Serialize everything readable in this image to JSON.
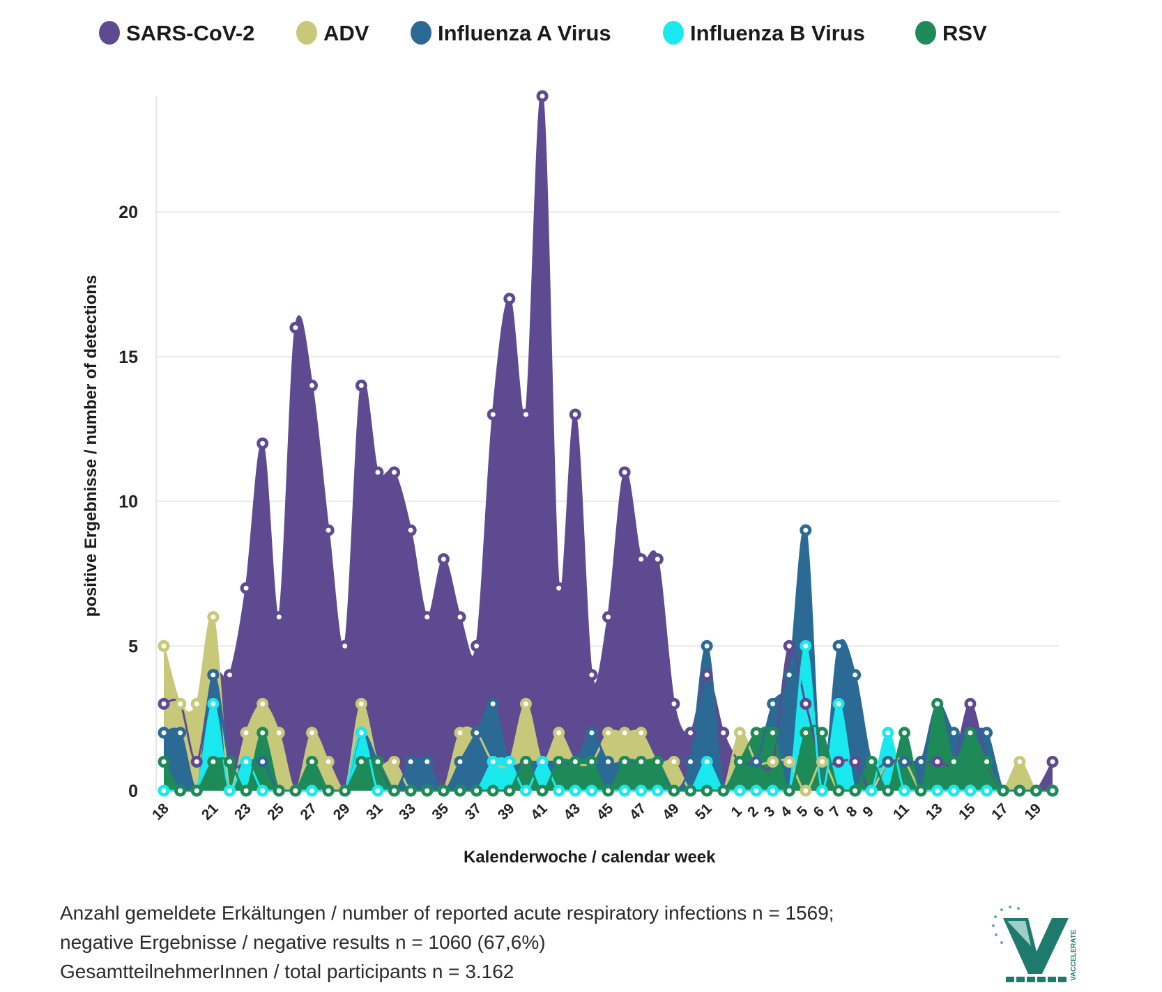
{
  "footer": {
    "line1": "Anzahl gemeldete Erkältungen / number of reported acute respiratory infections n = 1569;",
    "line2": "negative Ergebnisse / negative results n = 1060 (67,6%)",
    "line3": "GesamtteilnehmerInnen / total participants n = 3.162"
  },
  "logo": {
    "text": "VACCELERATE"
  },
  "chart_data": {
    "type": "area",
    "title": "",
    "xlabel": "Kalenderwoche / calendar week",
    "ylabel": "positive Ergebnisse / number of detections",
    "ylim": [
      0,
      24
    ],
    "yticks": [
      0,
      5,
      10,
      15,
      20
    ],
    "grid": true,
    "legend_position": "top",
    "categories": [
      "18",
      "19",
      "20",
      "21",
      "22",
      "23",
      "24",
      "25",
      "26",
      "27",
      "28",
      "29",
      "30",
      "31",
      "32",
      "33",
      "34",
      "35",
      "36",
      "37",
      "38",
      "39",
      "40",
      "41",
      "42",
      "43",
      "44",
      "45",
      "46",
      "47",
      "48",
      "49",
      "50",
      "51",
      "52",
      "1",
      "2",
      "3",
      "4",
      "5",
      "6",
      "7",
      "8",
      "9",
      "10",
      "11",
      "12",
      "13",
      "14",
      "15",
      "16",
      "17",
      "18",
      "19",
      "20"
    ],
    "tick_labels": [
      "18",
      "",
      "",
      "21",
      "",
      "23",
      "",
      "25",
      "",
      "27",
      "",
      "29",
      "",
      "31",
      "",
      "33",
      "",
      "35",
      "",
      "37",
      "",
      "39",
      "",
      "41",
      "",
      "43",
      "",
      "45",
      "",
      "47",
      "",
      "49",
      "",
      "51",
      "",
      "1",
      "2",
      "3",
      "4",
      "5",
      "6",
      "7",
      "8",
      "9",
      "",
      "11",
      "",
      "13",
      "",
      "15",
      "",
      "17",
      "",
      "19",
      ""
    ],
    "series": [
      {
        "name": "SARS-CoV-2",
        "color": "#5e4a91",
        "values": [
          3,
          3,
          1,
          4,
          4,
          7,
          12,
          6,
          16,
          14,
          9,
          5,
          14,
          11,
          11,
          9,
          6,
          8,
          6,
          5,
          13,
          17,
          13,
          24,
          7,
          13,
          4,
          6,
          11,
          8,
          8,
          3,
          2,
          4,
          2,
          1,
          1,
          1,
          5,
          3,
          1,
          1,
          1,
          0,
          1,
          1,
          1,
          1,
          1,
          3,
          1,
          0,
          0,
          0,
          1
        ]
      },
      {
        "name": "ADV",
        "color": "#c8c87a",
        "values": [
          5,
          3,
          3,
          6,
          0,
          2,
          3,
          2,
          0,
          2,
          1,
          0,
          3,
          1,
          1,
          0,
          0,
          0,
          2,
          2,
          1,
          1,
          3,
          1,
          2,
          1,
          1,
          2,
          2,
          2,
          1,
          1,
          0,
          0,
          0,
          2,
          1,
          1,
          1,
          0,
          1,
          0,
          0,
          0,
          1,
          1,
          0,
          0,
          0,
          0,
          0,
          0,
          1,
          0,
          0
        ]
      },
      {
        "name": "Influenza A Virus",
        "color": "#2a6a94",
        "values": [
          2,
          2,
          0,
          4,
          1,
          1,
          1,
          0,
          0,
          1,
          0,
          0,
          2,
          1,
          0,
          1,
          1,
          0,
          1,
          2,
          3,
          1,
          1,
          1,
          1,
          1,
          2,
          1,
          1,
          1,
          1,
          0,
          1,
          5,
          0,
          1,
          1,
          3,
          4,
          9,
          0,
          5,
          4,
          1,
          1,
          1,
          1,
          3,
          2,
          2,
          2,
          0,
          0,
          0,
          0
        ]
      },
      {
        "name": "Influenza B Virus",
        "color": "#1ae8ef",
        "values": [
          0,
          0,
          0,
          3,
          0,
          1,
          0,
          0,
          0,
          0,
          0,
          0,
          2,
          0,
          0,
          0,
          0,
          0,
          0,
          0,
          1,
          1,
          0,
          1,
          0,
          0,
          0,
          0,
          0,
          0,
          0,
          0,
          0,
          1,
          0,
          0,
          0,
          0,
          0,
          5,
          0,
          3,
          0,
          0,
          2,
          0,
          0,
          0,
          0,
          0,
          0,
          0,
          0,
          0,
          0
        ]
      },
      {
        "name": "RSV",
        "color": "#1e8a57",
        "values": [
          1,
          0,
          0,
          1,
          1,
          0,
          2,
          0,
          0,
          1,
          0,
          0,
          1,
          1,
          0,
          0,
          0,
          0,
          0,
          0,
          0,
          0,
          1,
          0,
          1,
          1,
          1,
          0,
          1,
          1,
          1,
          0,
          0,
          0,
          0,
          1,
          2,
          2,
          0,
          2,
          2,
          0,
          0,
          1,
          0,
          2,
          0,
          3,
          1,
          2,
          1,
          0,
          0,
          0,
          0
        ]
      }
    ]
  }
}
